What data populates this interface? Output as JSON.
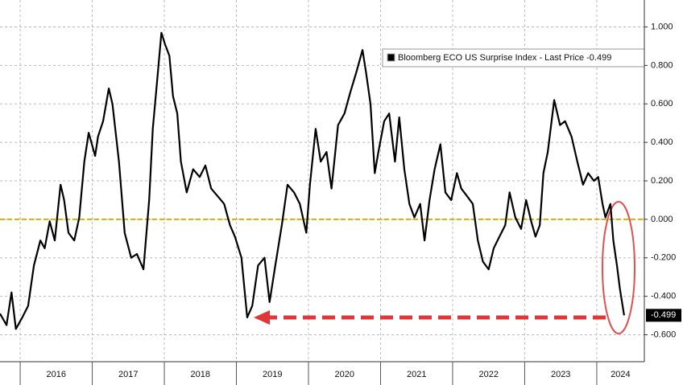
{
  "chart_data": {
    "type": "line",
    "x": [
      2015.72,
      2015.81,
      2015.88,
      2015.94,
      2016.03,
      2016.11,
      2016.19,
      2016.28,
      2016.34,
      2016.41,
      2016.48,
      2016.56,
      2016.61,
      2016.67,
      2016.75,
      2016.82,
      2016.89,
      2016.95,
      2017.04,
      2017.08,
      2017.15,
      2017.23,
      2017.28,
      2017.37,
      2017.45,
      2017.54,
      2017.62,
      2017.71,
      2017.79,
      2017.84,
      2017.9,
      2017.96,
      2018.01,
      2018.07,
      2018.12,
      2018.18,
      2018.23,
      2018.31,
      2018.4,
      2018.49,
      2018.57,
      2018.65,
      2018.74,
      2018.83,
      2018.91,
      2018.98,
      2019.07,
      2019.15,
      2019.22,
      2019.3,
      2019.39,
      2019.46,
      2019.54,
      2019.63,
      2019.71,
      2019.8,
      2019.88,
      2019.97,
      2020.02,
      2020.1,
      2020.17,
      2020.25,
      2020.32,
      2020.41,
      2020.5,
      2020.58,
      2020.66,
      2020.75,
      2020.8,
      2020.86,
      2020.92,
      2020.97,
      2021.05,
      2021.12,
      2021.2,
      2021.26,
      2021.33,
      2021.4,
      2021.47,
      2021.55,
      2021.61,
      2021.68,
      2021.75,
      2021.83,
      2021.9,
      2021.98,
      2022.06,
      2022.12,
      2022.2,
      2022.28,
      2022.35,
      2022.42,
      2022.5,
      2022.57,
      2022.65,
      2022.73,
      2022.79,
      2022.87,
      2022.95,
      2023.02,
      2023.09,
      2023.15,
      2023.21,
      2023.26,
      2023.32,
      2023.41,
      2023.49,
      2023.56,
      2023.65,
      2023.73,
      2023.81,
      2023.88,
      2023.96,
      2024.02,
      2024.08,
      2024.12,
      2024.19,
      2024.23,
      2024.28,
      2024.32,
      2024.38
    ],
    "series": [
      {
        "name": "Bloomberg ECO US Surprise Index - Last Price -0.499",
        "color": "#000000",
        "values": [
          -0.49,
          -0.55,
          -0.38,
          -0.57,
          -0.51,
          -0.45,
          -0.24,
          -0.11,
          -0.15,
          -0.01,
          -0.11,
          0.18,
          0.1,
          -0.07,
          -0.11,
          0.01,
          0.3,
          0.45,
          0.33,
          0.43,
          0.51,
          0.68,
          0.6,
          0.3,
          -0.07,
          -0.2,
          -0.18,
          -0.26,
          0.1,
          0.47,
          0.72,
          0.97,
          0.91,
          0.85,
          0.64,
          0.55,
          0.3,
          0.14,
          0.26,
          0.22,
          0.28,
          0.16,
          0.12,
          0.08,
          -0.03,
          -0.09,
          -0.2,
          -0.51,
          -0.45,
          -0.24,
          -0.2,
          -0.43,
          -0.24,
          -0.03,
          0.18,
          0.14,
          0.08,
          -0.07,
          0.18,
          0.47,
          0.3,
          0.35,
          0.16,
          0.49,
          0.55,
          0.66,
          0.76,
          0.88,
          0.76,
          0.6,
          0.24,
          0.35,
          0.51,
          0.55,
          0.3,
          0.53,
          0.26,
          0.08,
          0.01,
          0.08,
          -0.11,
          0.1,
          0.26,
          0.39,
          0.14,
          0.1,
          0.24,
          0.16,
          0.12,
          0.08,
          -0.11,
          -0.22,
          -0.26,
          -0.15,
          -0.09,
          -0.03,
          0.14,
          0.01,
          -0.05,
          0.1,
          -0.01,
          -0.09,
          -0.03,
          0.24,
          0.35,
          0.62,
          0.49,
          0.51,
          0.43,
          0.3,
          0.18,
          0.24,
          0.2,
          0.22,
          0.08,
          0.01,
          0.08,
          -0.11,
          -0.24,
          -0.36,
          -0.499
        ]
      }
    ],
    "xlim": [
      2015.72,
      2024.66
    ],
    "xticks": [
      2016,
      2017,
      2018,
      2019,
      2020,
      2021,
      2022,
      2023,
      2024
    ],
    "ylim": [
      -0.74,
      1.14
    ],
    "yticks": [
      {
        "value": 1,
        "label": "1.000"
      },
      {
        "value": 0.8,
        "label": "0.800"
      },
      {
        "value": 0.6,
        "label": "0.600"
      },
      {
        "value": 0.4,
        "label": "0.400"
      },
      {
        "value": 0.2,
        "label": "0.200"
      },
      {
        "value": 0,
        "label": "0.000"
      },
      {
        "value": -0.2,
        "label": "-0.200"
      },
      {
        "value": -0.4,
        "label": "-0.400"
      },
      {
        "value": -0.6,
        "label": "-0.600"
      }
    ],
    "hline": {
      "value": 0,
      "color": "#d4b000"
    },
    "grid": true
  }
}
